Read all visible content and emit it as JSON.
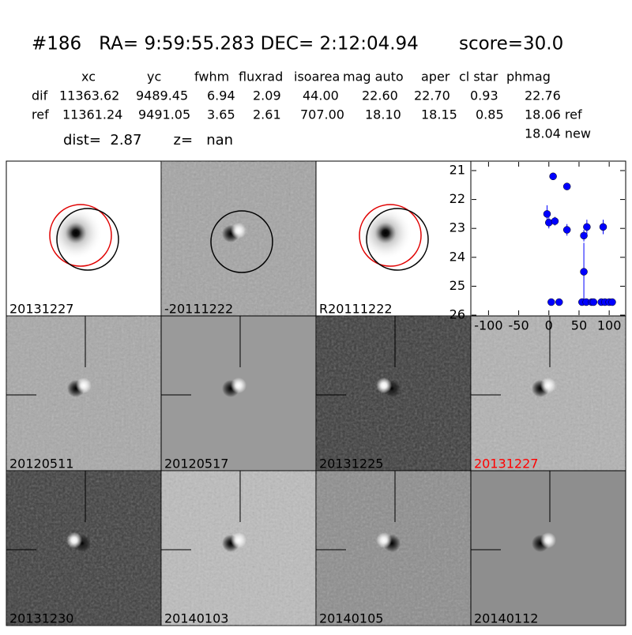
{
  "header": {
    "title": "#186   RA= 9:59:55.283 DEC= 2:12:04.94       score=30.0"
  },
  "table": {
    "columns": [
      "xc",
      "yc",
      "fwhm",
      "fluxrad",
      "isoarea",
      "mag auto",
      "aper",
      "cl star",
      "phmag"
    ],
    "rows": [
      [
        "dif",
        "11363.62",
        "9489.45",
        "6.94",
        "2.09",
        "44.00",
        "22.60",
        "22.70",
        "0.93",
        "22.76"
      ],
      [
        "ref",
        "11361.24",
        "9491.05",
        "3.65",
        "2.61",
        "707.00",
        "18.10",
        "18.15",
        "0.85",
        "18.06 ref"
      ]
    ],
    "note": "18.04 new"
  },
  "dist_line": "dist=  2.87       z=   nan",
  "panels": [
    {
      "label": "20131227"
    },
    {
      "label": "-20111222"
    },
    {
      "label": "R20111222"
    },
    {
      "label": "20120511"
    },
    {
      "label": "20120517"
    },
    {
      "label": "20131225"
    },
    {
      "label": "20131227",
      "color": "#ff0000"
    },
    {
      "label": "20131230"
    },
    {
      "label": "20140103"
    },
    {
      "label": "20140105"
    },
    {
      "label": "20140112"
    }
  ],
  "chart_data": {
    "type": "scatter",
    "color": "#0000ff",
    "x": [
      -3,
      0,
      7,
      10,
      30,
      30,
      58,
      58,
      63,
      90,
      4,
      17,
      55,
      62,
      71,
      74,
      87,
      93,
      100,
      105
    ],
    "values": [
      22.5,
      22.8,
      21.2,
      22.75,
      21.55,
      23.05,
      23.25,
      24.5,
      22.95,
      22.95,
      25.55,
      25.55,
      25.55,
      25.55,
      25.55,
      25.55,
      25.55,
      25.55,
      25.55,
      25.55
    ],
    "errors": [
      0.3,
      0.2,
      0.05,
      0.15,
      0.05,
      0.2,
      0.2,
      1.0,
      0.25,
      0.25,
      0,
      0,
      0,
      0,
      0,
      0,
      0,
      0,
      0,
      0
    ],
    "xlim": [
      -128,
      126
    ],
    "ylim": [
      26,
      20.7
    ],
    "xticks": [
      -100,
      -50,
      0,
      50,
      100
    ],
    "yticks": [
      21,
      22,
      23,
      24,
      25,
      26
    ]
  }
}
